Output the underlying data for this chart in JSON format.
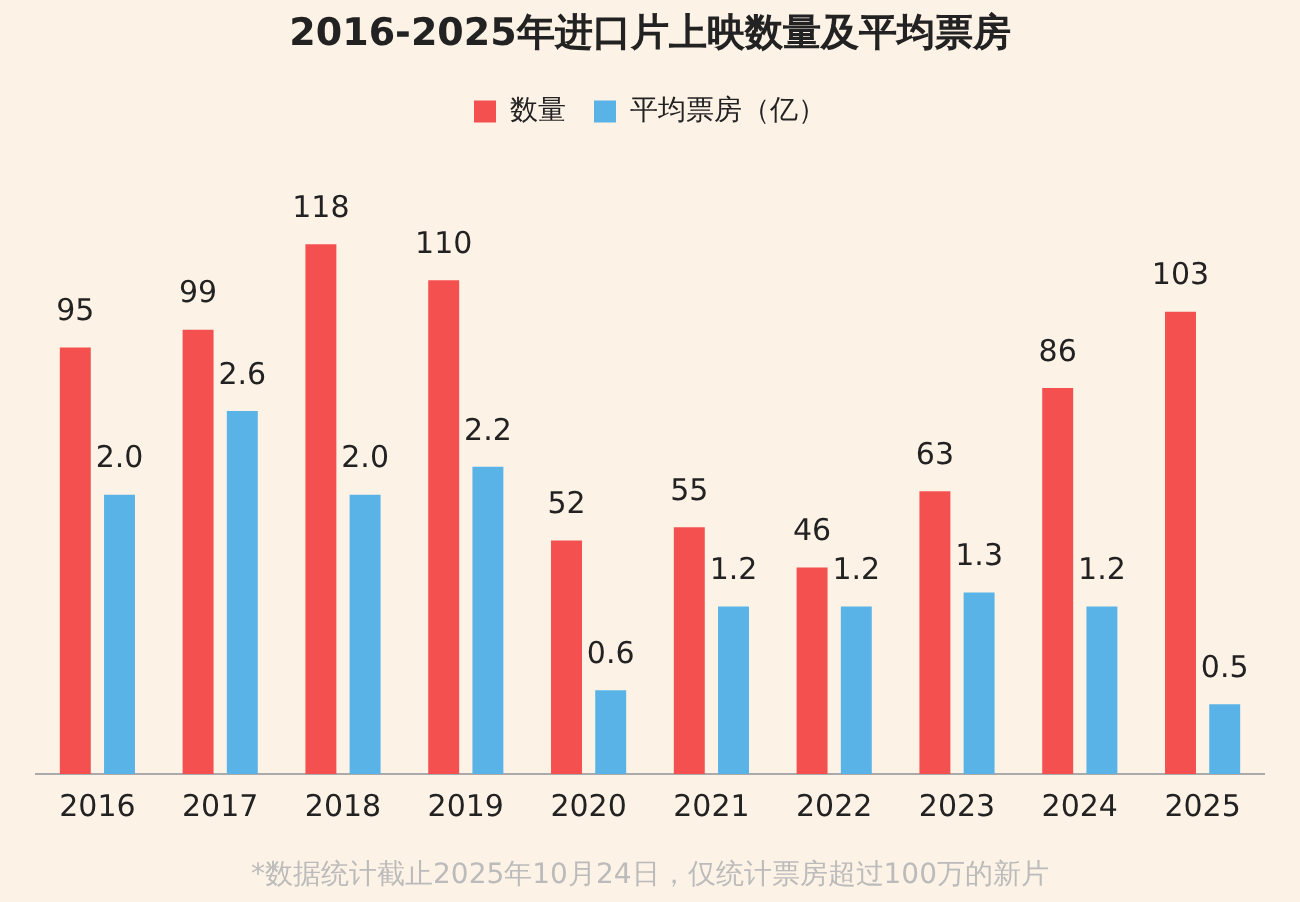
{
  "chart_data": {
    "type": "bar",
    "title": "2016-2025年进口片上映数量及平均票房",
    "categories": [
      "2016",
      "2017",
      "2018",
      "2019",
      "2020",
      "2021",
      "2022",
      "2023",
      "2024",
      "2025"
    ],
    "series": [
      {
        "name": "数量",
        "color": "#f4504f",
        "values": [
          95,
          99,
          118,
          110,
          52,
          55,
          46,
          63,
          86,
          103
        ],
        "value_labels": [
          "95",
          "99",
          "118",
          "110",
          "52",
          "55",
          "46",
          "63",
          "86",
          "103"
        ]
      },
      {
        "name": "平均票房（亿）",
        "color": "#5ab3e6",
        "axis": "y2",
        "values": [
          2.0,
          2.6,
          2.0,
          2.2,
          0.6,
          1.2,
          1.2,
          1.3,
          1.2,
          0.5
        ],
        "value_labels": [
          "2.0",
          "2.6",
          "2.0",
          "2.2",
          "0.6",
          "1.2",
          "1.2",
          "1.3",
          "1.2",
          "0.5"
        ]
      }
    ],
    "tick_labels": "x",
    "grid": false,
    "legend": "top",
    "annotations": [
      "*数据统计截止2025年10月24日，仅统计票房超过100万的新片"
    ]
  }
}
